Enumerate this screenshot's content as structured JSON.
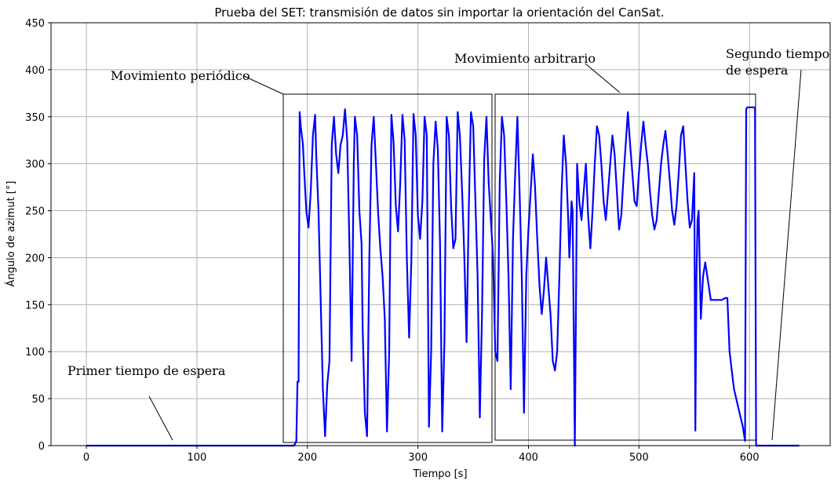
{
  "chart_data": {
    "type": "line",
    "title": "Prueba del SET: transmisión de datos sin importar la orientación del CanSat.",
    "xlabel": "Tiempo [s]",
    "ylabel": "Ángulo de azimut [°]",
    "xlim": [
      -32,
      673
    ],
    "ylim": [
      0,
      450
    ],
    "xticks": [
      0,
      100,
      200,
      300,
      400,
      500,
      600
    ],
    "yticks": [
      0,
      50,
      100,
      150,
      200,
      250,
      300,
      350,
      400,
      450
    ],
    "grid": true,
    "colors": {
      "series": "#0000ff",
      "grid": "#b0b0b0"
    },
    "series": [
      {
        "x": [
          0,
          100,
          185,
          188,
          190,
          191,
          192,
          193,
          194,
          196,
          197,
          199,
          201,
          203,
          205,
          207,
          208,
          210,
          212,
          214,
          216,
          218,
          220,
          222,
          224,
          226,
          228,
          230,
          232,
          234,
          236,
          238,
          240,
          242,
          243,
          245,
          247,
          249,
          250,
          252,
          254,
          256,
          258,
          260,
          262,
          264,
          266,
          268,
          270,
          272,
          274,
          276,
          278,
          280,
          282,
          284,
          286,
          288,
          290,
          292,
          294,
          296,
          298,
          300,
          302,
          304,
          306,
          308,
          310,
          312,
          314,
          316,
          318,
          320,
          322,
          324,
          326,
          328,
          330,
          332,
          334,
          336,
          338,
          340,
          342,
          344,
          346,
          348,
          350,
          352,
          354,
          356,
          358,
          360,
          362,
          364,
          366,
          368,
          370,
          372,
          374,
          376,
          378,
          380,
          382,
          384,
          386,
          388,
          390,
          392,
          394,
          396,
          398,
          400,
          402,
          404,
          406,
          408,
          410,
          412,
          414,
          416,
          418,
          420,
          422,
          424,
          426,
          428,
          430,
          432,
          434,
          436,
          437,
          438,
          439,
          440,
          442,
          444,
          446,
          448,
          450,
          452,
          454,
          456,
          458,
          460,
          462,
          464,
          466,
          468,
          470,
          472,
          474,
          476,
          478,
          480,
          482,
          484,
          486,
          488,
          490,
          492,
          494,
          496,
          498,
          500,
          502,
          504,
          506,
          508,
          510,
          512,
          514,
          516,
          518,
          520,
          522,
          524,
          526,
          528,
          530,
          532,
          534,
          536,
          538,
          540,
          542,
          544,
          546,
          548,
          550,
          551,
          552,
          553,
          554,
          555,
          556,
          558,
          560,
          565,
          570,
          575,
          578,
          580,
          582,
          584,
          586,
          588,
          590,
          592,
          594,
          596,
          597,
          598,
          600,
          603,
          604,
          605,
          606,
          620,
          645
        ],
        "y": [
          0,
          0,
          0,
          0,
          5,
          68,
          68,
          355,
          340,
          320,
          295,
          250,
          232,
          270,
          330,
          352,
          310,
          250,
          155,
          60,
          10,
          65,
          90,
          320,
          350,
          310,
          290,
          320,
          330,
          358,
          325,
          215,
          90,
          300,
          350,
          330,
          250,
          215,
          125,
          35,
          10,
          200,
          320,
          350,
          300,
          248,
          210,
          180,
          135,
          15,
          100,
          352,
          323,
          255,
          228,
          280,
          352,
          325,
          200,
          115,
          195,
          353,
          330,
          245,
          220,
          260,
          350,
          330,
          20,
          100,
          300,
          345,
          315,
          215,
          15,
          110,
          350,
          330,
          255,
          210,
          220,
          355,
          330,
          270,
          200,
          110,
          250,
          355,
          340,
          260,
          180,
          30,
          140,
          305,
          350,
          280,
          240,
          200,
          100,
          90,
          280,
          350,
          330,
          260,
          180,
          60,
          220,
          290,
          350,
          270,
          180,
          35,
          180,
          230,
          270,
          310,
          275,
          220,
          170,
          140,
          165,
          200,
          170,
          140,
          90,
          80,
          100,
          180,
          270,
          330,
          300,
          240,
          200,
          230,
          260,
          250,
          0,
          300,
          260,
          240,
          270,
          300,
          245,
          210,
          250,
          300,
          340,
          330,
          300,
          260,
          240,
          270,
          300,
          330,
          310,
          270,
          230,
          245,
          285,
          320,
          355,
          320,
          290,
          260,
          255,
          290,
          320,
          345,
          320,
          300,
          270,
          245,
          230,
          240,
          270,
          300,
          320,
          335,
          310,
          280,
          250,
          235,
          255,
          290,
          330,
          340,
          300,
          260,
          232,
          240,
          290,
          16,
          180,
          240,
          250,
          190,
          135,
          180,
          195,
          155,
          155,
          155,
          157,
          157,
          100,
          80,
          60,
          50,
          40,
          30,
          20,
          5,
          358,
          360,
          360,
          360,
          360,
          360,
          0,
          0,
          0
        ]
      }
    ]
  },
  "annotations": [
    {
      "text": "Movimiento periódico"
    },
    {
      "text": "Movimiento arbitrario"
    },
    {
      "text": "Segundo tiempo",
      "text2": "de espera"
    },
    {
      "text": "Primer tiempo de espera"
    }
  ]
}
